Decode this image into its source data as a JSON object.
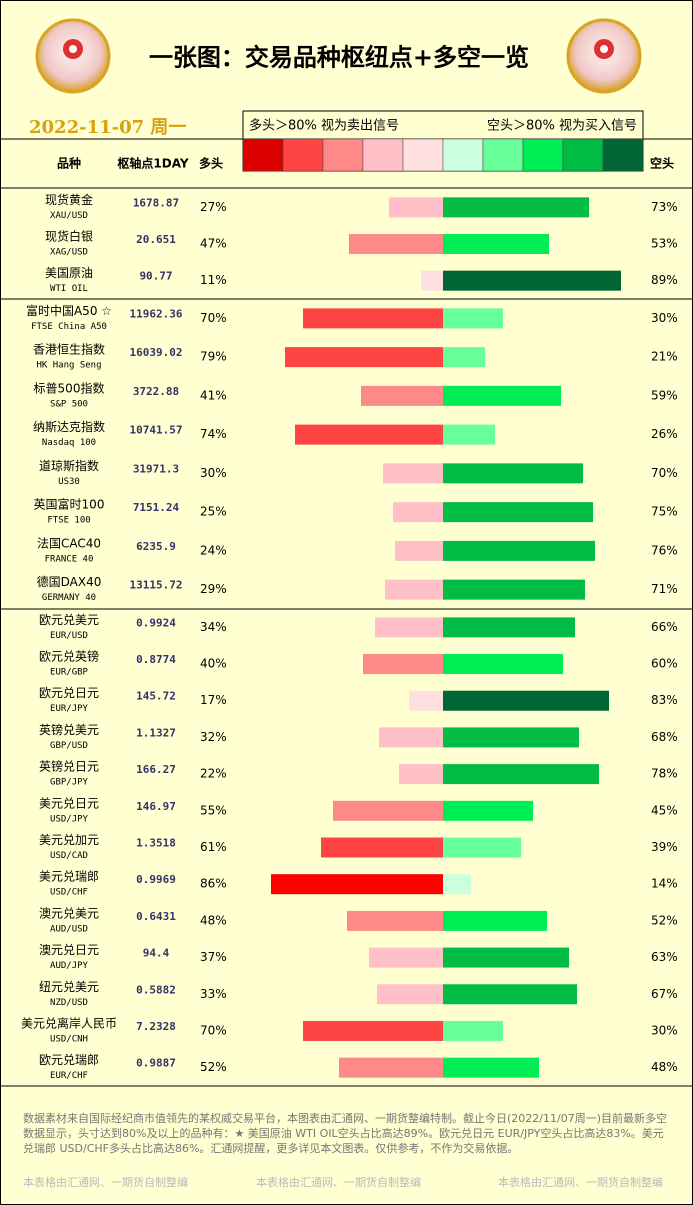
{
  "header": {
    "title": "一张图：交易品种枢纽点+多空一览",
    "date": "2022-11-07  周一",
    "legend_left": "多头＞80%  视为卖出信号",
    "legend_right": "空头＞80%  视为买入信号",
    "legend_colors": [
      "#dd0000",
      "#ff4444",
      "#ff8888",
      "#ffc0c8",
      "#ffe0e0",
      "#ccffdd",
      "#66ff99",
      "#00ee55",
      "#00bb44",
      "#006633"
    ]
  },
  "columns": {
    "name": "品种",
    "pivot": "枢轴点1DAY"
  },
  "chart_data": {
    "type": "diverging-bar",
    "categories": [
      "现货黄金",
      "现货白银",
      "美国原油",
      "富时中国A50 ☆",
      "香港恒生指数",
      "标普500指数",
      "纳斯达克指数",
      "道琼斯指数",
      "英国富时100",
      "法国CAC40",
      "德国DAX40",
      "欧元兑美元",
      "欧元兑英镑",
      "欧元兑日元",
      "英镑兑美元",
      "英镑兑日元",
      "美元兑日元",
      "美元兑加元",
      "美元兑瑞郎",
      "澳元兑美元",
      "澳元兑日元",
      "纽元兑美元",
      "美元兑离岸人民币",
      "欧元兑瑞郎"
    ],
    "codes": [
      "XAU/USD",
      "XAG/USD",
      "WTI OIL",
      "FTSE China A50",
      "HK Hang Seng",
      "S&P 500",
      "Nasdaq 100",
      "US30",
      "FTSE 100",
      "FRANCE 40",
      "GERMANY 40",
      "EUR/USD",
      "EUR/GBP",
      "EUR/JPY",
      "GBP/USD",
      "GBP/JPY",
      "USD/JPY",
      "USD/CAD",
      "USD/CHF",
      "AUD/USD",
      "AUD/JPY",
      "NZD/USD",
      "USD/CNH",
      "EUR/CHF"
    ],
    "pivots": [
      "1678.87",
      "20.651",
      "90.77",
      "11962.36",
      "16039.02",
      "3722.88",
      "10741.57",
      "31971.3",
      "7151.24",
      "6235.9",
      "13115.72",
      "0.9924",
      "0.8774",
      "145.72",
      "1.1327",
      "166.27",
      "146.97",
      "1.3518",
      "0.9969",
      "0.6431",
      "94.4",
      "0.5882",
      "7.2328",
      "0.9887"
    ],
    "series": [
      {
        "name": "多头",
        "values": [
          27,
          47,
          11,
          70,
          79,
          41,
          74,
          30,
          25,
          24,
          29,
          34,
          40,
          17,
          32,
          22,
          55,
          61,
          86,
          48,
          37,
          33,
          70,
          52
        ],
        "value_labels": [
          "27%",
          "47%",
          "11%",
          "70%",
          "79%",
          "41%",
          "74%",
          "30%",
          "25%",
          "24%",
          "29%",
          "34%",
          "40%",
          "17%",
          "32%",
          "22%",
          "55%",
          "61%",
          "86%",
          "48%",
          "37%",
          "33%",
          "70%",
          "52%"
        ],
        "colors": [
          "#ffc0c8",
          "#ff8888",
          "#ffe0e0",
          "#ff4444",
          "#ff4444",
          "#ff8888",
          "#ff4444",
          "#ffc0c8",
          "#ffc0c8",
          "#ffc0c8",
          "#ffc0c8",
          "#ffc0c8",
          "#ff8888",
          "#ffe0e0",
          "#ffc0c8",
          "#ffc0c8",
          "#ff8888",
          "#ff4444",
          "#ff0000",
          "#ff8888",
          "#ffc0c8",
          "#ffc0c8",
          "#ff4444",
          "#ff8888"
        ]
      },
      {
        "name": "空头",
        "values": [
          73,
          53,
          89,
          30,
          21,
          59,
          26,
          70,
          75,
          76,
          71,
          66,
          60,
          83,
          68,
          78,
          45,
          39,
          14,
          52,
          63,
          67,
          30,
          48
        ],
        "value_labels": [
          "73%",
          "53%",
          "89%",
          "30%",
          "21%",
          "59%",
          "26%",
          "70%",
          "75%",
          "76%",
          "71%",
          "66%",
          "60%",
          "83%",
          "68%",
          "78%",
          "45%",
          "39%",
          "14%",
          "52%",
          "63%",
          "67%",
          "30%",
          "48%"
        ],
        "colors": [
          "#00bb44",
          "#00ee55",
          "#006633",
          "#66ff99",
          "#66ff99",
          "#00ee55",
          "#66ff99",
          "#00bb44",
          "#00bb44",
          "#00bb44",
          "#00bb44",
          "#00bb44",
          "#00ee55",
          "#006633",
          "#00bb44",
          "#00bb44",
          "#00ee55",
          "#66ff99",
          "#ccffdd",
          "#00ee55",
          "#00bb44",
          "#00bb44",
          "#66ff99",
          "#00ee55"
        ]
      }
    ]
  },
  "footer": {
    "note": "数据素材来自国际经纪商市值领先的某权威交易平台，本图表由汇通网、一期货整编特制。截止今日(2022/11/07周一)目前最新多空数据显示，头寸达到80%及以上的品种有：★ 美国原油 WTI OIL空头占比高达89%。欧元兑日元 EUR/JPY空头占比高达83%。美元兑瑞郎 USD/CHF多头占比高达86%。汇通网提醒，更多详见本文图表。仅供参考，不作为交易依据。",
    "credit": "本表格由汇通网、一期货自制整编"
  }
}
